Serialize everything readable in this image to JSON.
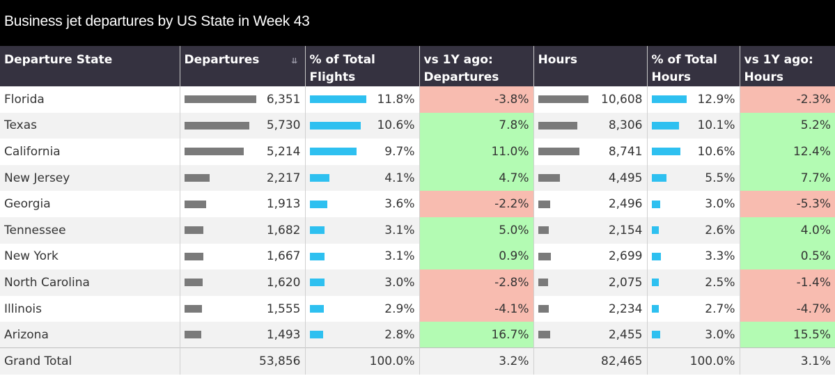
{
  "title": "Business jet departures by US State in Week 43",
  "columns": [
    "Departure State",
    "Departures",
    "% of Total Flights",
    "vs 1Y ago: Departures",
    "Hours",
    "% of Total Hours",
    "vs 1Y ago: Hours"
  ],
  "colors": {
    "header": "#353240",
    "bar_gray": "#7a7a7a",
    "bar_blue": "#2ec0f0",
    "positive": "#b3fbb3",
    "negative": "#f8bcb0"
  },
  "sort_icon": "sort-descending-icon",
  "rows": [
    {
      "state": "Florida",
      "departures": "6,351",
      "pct_flights": "11.8%",
      "yoy_dep": "-3.8%",
      "hours": "10,608",
      "pct_hours": "12.9%",
      "yoy_hours": "-2.3%"
    },
    {
      "state": "Texas",
      "departures": "5,730",
      "pct_flights": "10.6%",
      "yoy_dep": "7.8%",
      "hours": "8,306",
      "pct_hours": "10.1%",
      "yoy_hours": "5.2%"
    },
    {
      "state": "California",
      "departures": "5,214",
      "pct_flights": "9.7%",
      "yoy_dep": "11.0%",
      "hours": "8,741",
      "pct_hours": "10.6%",
      "yoy_hours": "12.4%"
    },
    {
      "state": "New Jersey",
      "departures": "2,217",
      "pct_flights": "4.1%",
      "yoy_dep": "4.7%",
      "hours": "4,495",
      "pct_hours": "5.5%",
      "yoy_hours": "7.7%"
    },
    {
      "state": "Georgia",
      "departures": "1,913",
      "pct_flights": "3.6%",
      "yoy_dep": "-2.2%",
      "hours": "2,496",
      "pct_hours": "3.0%",
      "yoy_hours": "-5.3%"
    },
    {
      "state": "Tennessee",
      "departures": "1,682",
      "pct_flights": "3.1%",
      "yoy_dep": "5.0%",
      "hours": "2,154",
      "pct_hours": "2.6%",
      "yoy_hours": "4.0%"
    },
    {
      "state": "New York",
      "departures": "1,667",
      "pct_flights": "3.1%",
      "yoy_dep": "0.9%",
      "hours": "2,699",
      "pct_hours": "3.3%",
      "yoy_hours": "0.5%"
    },
    {
      "state": "North Carolina",
      "departures": "1,620",
      "pct_flights": "3.0%",
      "yoy_dep": "-2.8%",
      "hours": "2,075",
      "pct_hours": "2.5%",
      "yoy_hours": "-1.4%"
    },
    {
      "state": "Illinois",
      "departures": "1,555",
      "pct_flights": "2.9%",
      "yoy_dep": "-4.1%",
      "hours": "2,234",
      "pct_hours": "2.7%",
      "yoy_hours": "-4.7%"
    },
    {
      "state": "Arizona",
      "departures": "1,493",
      "pct_flights": "2.8%",
      "yoy_dep": "16.7%",
      "hours": "2,455",
      "pct_hours": "3.0%",
      "yoy_hours": "15.5%"
    }
  ],
  "total": {
    "state": "Grand Total",
    "departures": "53,856",
    "pct_flights": "100.0%",
    "yoy_dep": "3.2%",
    "hours": "82,465",
    "pct_hours": "100.0%",
    "yoy_hours": "3.1%"
  },
  "chart_data": {
    "type": "table",
    "title": "Business jet departures by US State in Week 43",
    "columns": [
      "Departure State",
      "Departures",
      "% of Total Flights",
      "vs 1Y ago: Departures",
      "Hours",
      "% of Total Hours",
      "vs 1Y ago: Hours"
    ],
    "categories": [
      "Florida",
      "Texas",
      "California",
      "New Jersey",
      "Georgia",
      "Tennessee",
      "New York",
      "North Carolina",
      "Illinois",
      "Arizona"
    ],
    "series": [
      {
        "name": "Departures",
        "values": [
          6351,
          5730,
          5214,
          2217,
          1913,
          1682,
          1667,
          1620,
          1555,
          1493
        ]
      },
      {
        "name": "% of Total Flights",
        "values": [
          11.8,
          10.6,
          9.7,
          4.1,
          3.6,
          3.1,
          3.1,
          3.0,
          2.9,
          2.8
        ]
      },
      {
        "name": "vs 1Y ago: Departures",
        "values": [
          -3.8,
          7.8,
          11.0,
          4.7,
          -2.2,
          5.0,
          0.9,
          -2.8,
          -4.1,
          16.7
        ]
      },
      {
        "name": "Hours",
        "values": [
          10608,
          8306,
          8741,
          4495,
          2496,
          2154,
          2699,
          2075,
          2234,
          2455
        ]
      },
      {
        "name": "% of Total Hours",
        "values": [
          12.9,
          10.1,
          10.6,
          5.5,
          3.0,
          2.6,
          3.3,
          2.5,
          2.7,
          3.0
        ]
      },
      {
        "name": "vs 1Y ago: Hours",
        "values": [
          -2.3,
          5.2,
          12.4,
          7.7,
          -5.3,
          4.0,
          0.5,
          -1.4,
          -4.7,
          15.5
        ]
      }
    ],
    "totals": {
      "Departures": 53856,
      "% of Total Flights": 100.0,
      "vs 1Y ago: Departures": 3.2,
      "Hours": 82465,
      "% of Total Hours": 100.0,
      "vs 1Y ago: Hours": 3.1
    }
  }
}
